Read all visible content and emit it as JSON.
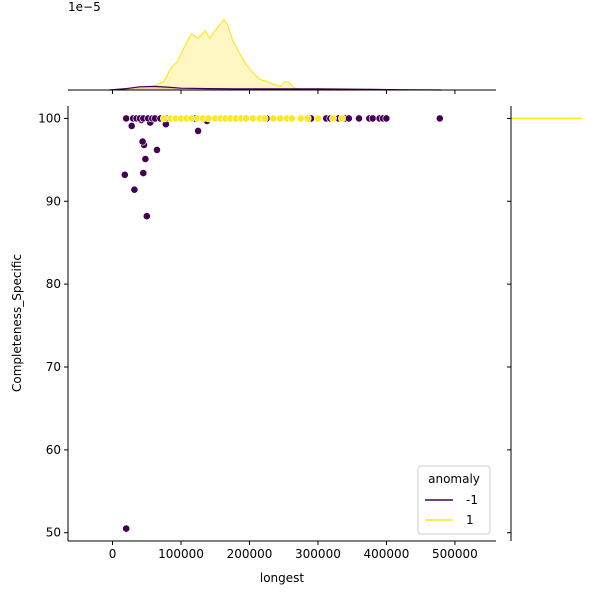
{
  "chart_data": {
    "type": "scatter",
    "xlabel": "longest",
    "ylabel": "Completeness_Specific",
    "xlim": [
      -65000,
      560000
    ],
    "ylim": [
      49,
      101.5
    ],
    "x_ticks": [
      0,
      100000,
      200000,
      300000,
      400000,
      500000
    ],
    "x_tick_labels": [
      "0",
      "100000",
      "200000",
      "300000",
      "400000",
      "500000"
    ],
    "y_ticks": [
      50,
      60,
      70,
      80,
      90,
      100
    ],
    "y_tick_labels": [
      "50",
      "60",
      "70",
      "80",
      "90",
      "100"
    ],
    "top_marginal_offset_label": "1e−5",
    "legend": {
      "title": "anomaly",
      "placement": "lower-right",
      "entries": [
        {
          "label": "-1",
          "color": "#440154"
        },
        {
          "label": "1",
          "color": "#fde725"
        }
      ]
    },
    "series": [
      {
        "name": "-1",
        "color": "#440154",
        "points": [
          [
            20000,
            50.5
          ],
          [
            50000,
            88.2
          ],
          [
            32000,
            91.4
          ],
          [
            18000,
            93.2
          ],
          [
            45000,
            93.4
          ],
          [
            48000,
            95.1
          ],
          [
            65000,
            96.2
          ],
          [
            46000,
            96.8
          ],
          [
            44000,
            97.2
          ],
          [
            28000,
            99.1
          ],
          [
            125000,
            98.5
          ],
          [
            78000,
            99.3
          ],
          [
            55000,
            99.5
          ],
          [
            42000,
            99.8
          ],
          [
            138000,
            99.7
          ],
          [
            20000,
            100
          ],
          [
            30000,
            100
          ],
          [
            35000,
            100
          ],
          [
            40000,
            100
          ],
          [
            45000,
            100
          ],
          [
            52000,
            100
          ],
          [
            58000,
            100
          ],
          [
            62000,
            100
          ],
          [
            70000,
            100
          ],
          [
            78000,
            100
          ],
          [
            120000,
            100
          ],
          [
            225000,
            100
          ],
          [
            290000,
            100
          ],
          [
            300000,
            100
          ],
          [
            312000,
            100
          ],
          [
            318000,
            100
          ],
          [
            330000,
            100
          ],
          [
            340000,
            100
          ],
          [
            345000,
            100
          ],
          [
            360000,
            100
          ],
          [
            375000,
            100
          ],
          [
            380000,
            100
          ],
          [
            390000,
            100
          ],
          [
            395000,
            100
          ],
          [
            400000,
            100
          ],
          [
            478000,
            100
          ]
        ]
      },
      {
        "name": "1",
        "color": "#fde725",
        "points": [
          [
            75000,
            100
          ],
          [
            85000,
            100
          ],
          [
            92000,
            100
          ],
          [
            100000,
            100
          ],
          [
            108000,
            100
          ],
          [
            115000,
            100
          ],
          [
            125000,
            100
          ],
          [
            132000,
            100
          ],
          [
            140000,
            100
          ],
          [
            150000,
            100
          ],
          [
            158000,
            100
          ],
          [
            165000,
            100
          ],
          [
            172000,
            100
          ],
          [
            180000,
            100
          ],
          [
            188000,
            100
          ],
          [
            195000,
            100
          ],
          [
            205000,
            100
          ],
          [
            215000,
            100
          ],
          [
            222000,
            100
          ],
          [
            235000,
            100
          ],
          [
            245000,
            100
          ],
          [
            255000,
            100
          ],
          [
            262000,
            100
          ],
          [
            275000,
            100
          ],
          [
            285000,
            100
          ],
          [
            300000,
            100
          ],
          [
            322000,
            100
          ],
          [
            335000,
            100
          ]
        ]
      }
    ],
    "top_marginal": {
      "type": "area",
      "series": [
        {
          "name": "1",
          "color": "#fde725",
          "fill": "#fef5b8",
          "x": [
            -5000,
            40000,
            60000,
            75000,
            85000,
            95000,
            105000,
            115000,
            125000,
            135000,
            142000,
            150000,
            158000,
            163000,
            168000,
            175000,
            185000,
            195000,
            205000,
            215000,
            225000,
            235000,
            245000,
            252000,
            258000,
            265000,
            275000,
            300000,
            350000
          ],
          "y": [
            0,
            0.02,
            0.05,
            0.12,
            0.3,
            0.4,
            0.6,
            0.78,
            0.72,
            0.82,
            0.72,
            0.83,
            0.92,
            0.98,
            0.9,
            0.7,
            0.52,
            0.36,
            0.24,
            0.15,
            0.12,
            0.08,
            0.05,
            0.12,
            0.1,
            0.03,
            0.01,
            0,
            0
          ]
        },
        {
          "name": "-1",
          "color": "#440154",
          "fill": "#f0c8a8",
          "x": [
            -5000,
            20000,
            40000,
            60000,
            80000,
            100000,
            140000,
            180000,
            220000,
            260000,
            300000,
            340000,
            380000,
            420000,
            480000
          ],
          "y": [
            0,
            0.02,
            0.045,
            0.05,
            0.04,
            0.025,
            0.02,
            0.015,
            0.015,
            0.015,
            0.015,
            0.012,
            0.008,
            0.004,
            0
          ]
        }
      ]
    },
    "right_marginal": {
      "type": "line",
      "value": 100,
      "color": "#fde725"
    }
  }
}
